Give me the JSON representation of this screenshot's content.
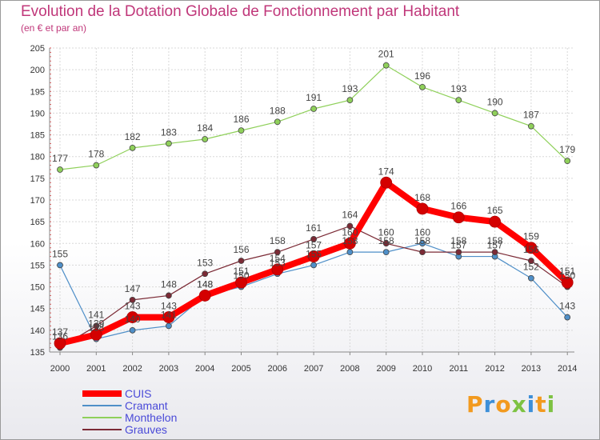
{
  "title": "Evolution de la Dotation Globale de Fonctionnement par Habitant",
  "subtitle": "(en € et par an)",
  "brand": {
    "text": "Proxiti",
    "colors": [
      "#f29a1f",
      "#3d8fd8",
      "#f29a1f",
      "#7dc242",
      "#3d8fd8",
      "#f29a1f",
      "#7dc242"
    ]
  },
  "chart_data": {
    "type": "line",
    "title": "Evolution de la Dotation Globale de Fonctionnement par Habitant",
    "subtitle": "(en € et par an)",
    "x": [
      2000,
      2001,
      2002,
      2003,
      2004,
      2005,
      2006,
      2007,
      2008,
      2009,
      2010,
      2011,
      2012,
      2013,
      2014
    ],
    "ylim": [
      135,
      205
    ],
    "yticks": [
      135,
      140,
      145,
      150,
      155,
      160,
      165,
      170,
      175,
      180,
      185,
      190,
      195,
      200,
      205
    ],
    "grid": true,
    "legend": "bottom-left",
    "series": [
      {
        "name": "CUIS",
        "color": "#ff0000",
        "label_color": "#4a4ad8",
        "width": 8,
        "marker": 7,
        "values": [
          137,
          139,
          143,
          143,
          148,
          151,
          154,
          157,
          160,
          174,
          168,
          166,
          165,
          159,
          151
        ]
      },
      {
        "name": "Cramant",
        "color": "#4f8fc8",
        "label_color": "#4a4ad8",
        "width": 1.2,
        "marker": 3.5,
        "values": [
          155,
          138,
          140,
          141,
          148,
          150,
          153,
          155,
          158,
          158,
          160,
          157,
          157,
          152,
          143
        ]
      },
      {
        "name": "Monthelon",
        "color": "#8fd05a",
        "label_color": "#4a4ad8",
        "width": 1.2,
        "marker": 3.5,
        "values": [
          177,
          178,
          182,
          183,
          184,
          186,
          188,
          191,
          193,
          201,
          196,
          193,
          190,
          187,
          179
        ]
      },
      {
        "name": "Grauves",
        "color": "#7b2a35",
        "label_color": "#4a4ad8",
        "width": 1.2,
        "marker": 3.5,
        "values": [
          136,
          141,
          147,
          148,
          153,
          156,
          158,
          161,
          164,
          160,
          158,
          158,
          158,
          156,
          150
        ]
      }
    ]
  }
}
